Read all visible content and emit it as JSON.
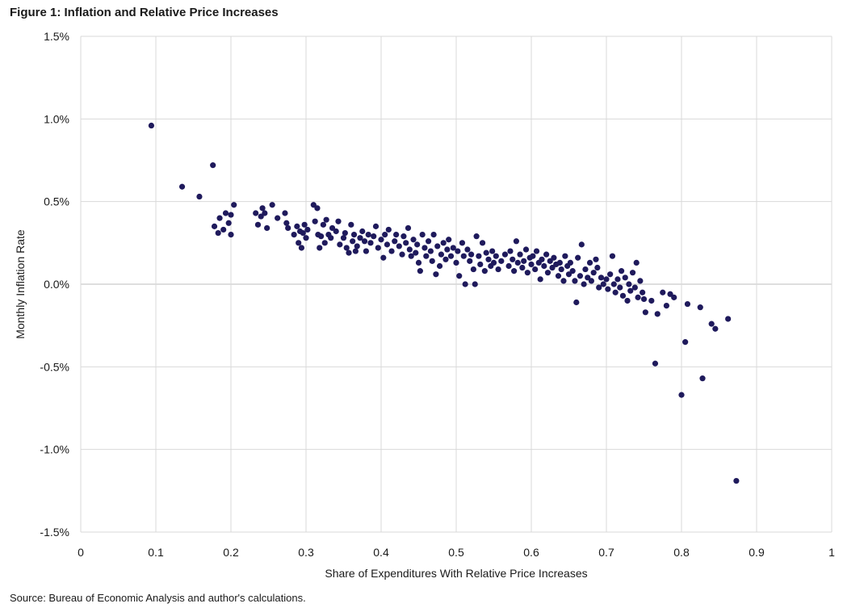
{
  "chart_data": {
    "type": "scatter",
    "title": "Figure 1: Inflation and Relative Price Increases",
    "xlabel": "Share of Expenditures With Relative Price Increases",
    "ylabel": "Monthly Inflation Rate",
    "source": "Source: Bureau of Economic Analysis and author's calculations.",
    "xlim": [
      0,
      1
    ],
    "ylim": [
      -1.5,
      1.5
    ],
    "x_ticks": [
      "0",
      "0.1",
      "0.2",
      "0.3",
      "0.4",
      "0.5",
      "0.6",
      "0.7",
      "0.8",
      "0.9",
      "1"
    ],
    "y_ticks": [
      "1.5%",
      "1.0%",
      "0.5%",
      "0.0%",
      "-0.5%",
      "-1.0%",
      "-1.5%"
    ],
    "grid": true,
    "marker_color": "#1f1a5c",
    "points": [
      [
        0.094,
        0.96
      ],
      [
        0.135,
        0.59
      ],
      [
        0.158,
        0.53
      ],
      [
        0.176,
        0.72
      ],
      [
        0.178,
        0.35
      ],
      [
        0.183,
        0.31
      ],
      [
        0.185,
        0.4
      ],
      [
        0.19,
        0.33
      ],
      [
        0.193,
        0.43
      ],
      [
        0.197,
        0.37
      ],
      [
        0.2,
        0.3
      ],
      [
        0.2,
        0.42
      ],
      [
        0.204,
        0.48
      ],
      [
        0.233,
        0.43
      ],
      [
        0.236,
        0.36
      ],
      [
        0.24,
        0.41
      ],
      [
        0.242,
        0.46
      ],
      [
        0.245,
        0.43
      ],
      [
        0.248,
        0.34
      ],
      [
        0.255,
        0.48
      ],
      [
        0.262,
        0.4
      ],
      [
        0.272,
        0.43
      ],
      [
        0.274,
        0.37
      ],
      [
        0.276,
        0.34
      ],
      [
        0.284,
        0.3
      ],
      [
        0.288,
        0.35
      ],
      [
        0.29,
        0.25
      ],
      [
        0.292,
        0.32
      ],
      [
        0.294,
        0.22
      ],
      [
        0.296,
        0.31
      ],
      [
        0.298,
        0.36
      ],
      [
        0.3,
        0.28
      ],
      [
        0.302,
        0.33
      ],
      [
        0.31,
        0.48
      ],
      [
        0.312,
        0.38
      ],
      [
        0.315,
        0.46
      ],
      [
        0.316,
        0.3
      ],
      [
        0.318,
        0.22
      ],
      [
        0.32,
        0.29
      ],
      [
        0.323,
        0.36
      ],
      [
        0.325,
        0.25
      ],
      [
        0.327,
        0.39
      ],
      [
        0.33,
        0.3
      ],
      [
        0.333,
        0.28
      ],
      [
        0.335,
        0.34
      ],
      [
        0.34,
        0.32
      ],
      [
        0.343,
        0.38
      ],
      [
        0.345,
        0.24
      ],
      [
        0.35,
        0.28
      ],
      [
        0.352,
        0.31
      ],
      [
        0.354,
        0.22
      ],
      [
        0.357,
        0.19
      ],
      [
        0.36,
        0.36
      ],
      [
        0.362,
        0.26
      ],
      [
        0.364,
        0.3
      ],
      [
        0.366,
        0.2
      ],
      [
        0.368,
        0.23
      ],
      [
        0.372,
        0.28
      ],
      [
        0.375,
        0.32
      ],
      [
        0.378,
        0.26
      ],
      [
        0.38,
        0.2
      ],
      [
        0.383,
        0.3
      ],
      [
        0.386,
        0.25
      ],
      [
        0.39,
        0.29
      ],
      [
        0.393,
        0.35
      ],
      [
        0.396,
        0.22
      ],
      [
        0.4,
        0.27
      ],
      [
        0.403,
        0.16
      ],
      [
        0.405,
        0.3
      ],
      [
        0.408,
        0.24
      ],
      [
        0.41,
        0.33
      ],
      [
        0.414,
        0.2
      ],
      [
        0.418,
        0.26
      ],
      [
        0.42,
        0.3
      ],
      [
        0.424,
        0.23
      ],
      [
        0.428,
        0.18
      ],
      [
        0.43,
        0.29
      ],
      [
        0.433,
        0.25
      ],
      [
        0.436,
        0.34
      ],
      [
        0.438,
        0.21
      ],
      [
        0.44,
        0.17
      ],
      [
        0.443,
        0.27
      ],
      [
        0.446,
        0.19
      ],
      [
        0.448,
        0.24
      ],
      [
        0.45,
        0.13
      ],
      [
        0.452,
        0.08
      ],
      [
        0.455,
        0.3
      ],
      [
        0.458,
        0.22
      ],
      [
        0.46,
        0.17
      ],
      [
        0.463,
        0.26
      ],
      [
        0.466,
        0.2
      ],
      [
        0.468,
        0.14
      ],
      [
        0.47,
        0.3
      ],
      [
        0.473,
        0.06
      ],
      [
        0.475,
        0.23
      ],
      [
        0.478,
        0.11
      ],
      [
        0.48,
        0.18
      ],
      [
        0.483,
        0.25
      ],
      [
        0.486,
        0.15
      ],
      [
        0.488,
        0.21
      ],
      [
        0.49,
        0.27
      ],
      [
        0.493,
        0.17
      ],
      [
        0.496,
        0.22
      ],
      [
        0.5,
        0.13
      ],
      [
        0.502,
        0.2
      ],
      [
        0.504,
        0.05
      ],
      [
        0.508,
        0.25
      ],
      [
        0.51,
        0.17
      ],
      [
        0.512,
        0.0
      ],
      [
        0.515,
        0.21
      ],
      [
        0.518,
        0.14
      ],
      [
        0.52,
        0.18
      ],
      [
        0.523,
        0.09
      ],
      [
        0.525,
        0.0
      ],
      [
        0.527,
        0.29
      ],
      [
        0.53,
        0.17
      ],
      [
        0.532,
        0.12
      ],
      [
        0.535,
        0.25
      ],
      [
        0.538,
        0.08
      ],
      [
        0.54,
        0.19
      ],
      [
        0.543,
        0.15
      ],
      [
        0.546,
        0.11
      ],
      [
        0.548,
        0.2
      ],
      [
        0.55,
        0.13
      ],
      [
        0.553,
        0.17
      ],
      [
        0.556,
        0.09
      ],
      [
        0.56,
        0.14
      ],
      [
        0.565,
        0.18
      ],
      [
        0.57,
        0.11
      ],
      [
        0.572,
        0.2
      ],
      [
        0.575,
        0.15
      ],
      [
        0.577,
        0.08
      ],
      [
        0.58,
        0.26
      ],
      [
        0.582,
        0.13
      ],
      [
        0.585,
        0.18
      ],
      [
        0.588,
        0.1
      ],
      [
        0.59,
        0.14
      ],
      [
        0.593,
        0.21
      ],
      [
        0.595,
        0.07
      ],
      [
        0.598,
        0.16
      ],
      [
        0.6,
        0.12
      ],
      [
        0.602,
        0.17
      ],
      [
        0.605,
        0.09
      ],
      [
        0.607,
        0.2
      ],
      [
        0.61,
        0.13
      ],
      [
        0.612,
        0.03
      ],
      [
        0.614,
        0.15
      ],
      [
        0.617,
        0.11
      ],
      [
        0.62,
        0.18
      ],
      [
        0.622,
        0.07
      ],
      [
        0.625,
        0.14
      ],
      [
        0.628,
        0.1
      ],
      [
        0.63,
        0.16
      ],
      [
        0.633,
        0.12
      ],
      [
        0.636,
        0.05
      ],
      [
        0.638,
        0.13
      ],
      [
        0.64,
        0.09
      ],
      [
        0.643,
        0.02
      ],
      [
        0.645,
        0.17
      ],
      [
        0.648,
        0.11
      ],
      [
        0.65,
        0.06
      ],
      [
        0.652,
        0.13
      ],
      [
        0.655,
        0.08
      ],
      [
        0.658,
        0.02
      ],
      [
        0.66,
        -0.11
      ],
      [
        0.662,
        0.16
      ],
      [
        0.665,
        0.05
      ],
      [
        0.667,
        0.24
      ],
      [
        0.67,
        0.0
      ],
      [
        0.672,
        0.09
      ],
      [
        0.675,
        0.04
      ],
      [
        0.678,
        0.13
      ],
      [
        0.68,
        0.02
      ],
      [
        0.683,
        0.07
      ],
      [
        0.686,
        0.15
      ],
      [
        0.688,
        0.1
      ],
      [
        0.69,
        -0.02
      ],
      [
        0.693,
        0.04
      ],
      [
        0.696,
        0.0
      ],
      [
        0.7,
        0.03
      ],
      [
        0.702,
        -0.03
      ],
      [
        0.705,
        0.06
      ],
      [
        0.708,
        0.17
      ],
      [
        0.71,
        0.0
      ],
      [
        0.712,
        -0.05
      ],
      [
        0.715,
        0.03
      ],
      [
        0.718,
        -0.02
      ],
      [
        0.72,
        0.08
      ],
      [
        0.722,
        -0.07
      ],
      [
        0.725,
        0.04
      ],
      [
        0.728,
        -0.1
      ],
      [
        0.73,
        0.0
      ],
      [
        0.732,
        -0.04
      ],
      [
        0.735,
        0.07
      ],
      [
        0.738,
        -0.02
      ],
      [
        0.74,
        0.13
      ],
      [
        0.742,
        -0.08
      ],
      [
        0.745,
        0.02
      ],
      [
        0.748,
        -0.05
      ],
      [
        0.75,
        -0.09
      ],
      [
        0.752,
        -0.17
      ],
      [
        0.76,
        -0.1
      ],
      [
        0.765,
        -0.48
      ],
      [
        0.768,
        -0.18
      ],
      [
        0.775,
        -0.05
      ],
      [
        0.78,
        -0.13
      ],
      [
        0.785,
        -0.06
      ],
      [
        0.79,
        -0.08
      ],
      [
        0.8,
        -0.67
      ],
      [
        0.805,
        -0.35
      ],
      [
        0.808,
        -0.12
      ],
      [
        0.825,
        -0.14
      ],
      [
        0.828,
        -0.57
      ],
      [
        0.84,
        -0.24
      ],
      [
        0.845,
        -0.27
      ],
      [
        0.862,
        -0.21
      ],
      [
        0.873,
        -1.19
      ]
    ]
  }
}
